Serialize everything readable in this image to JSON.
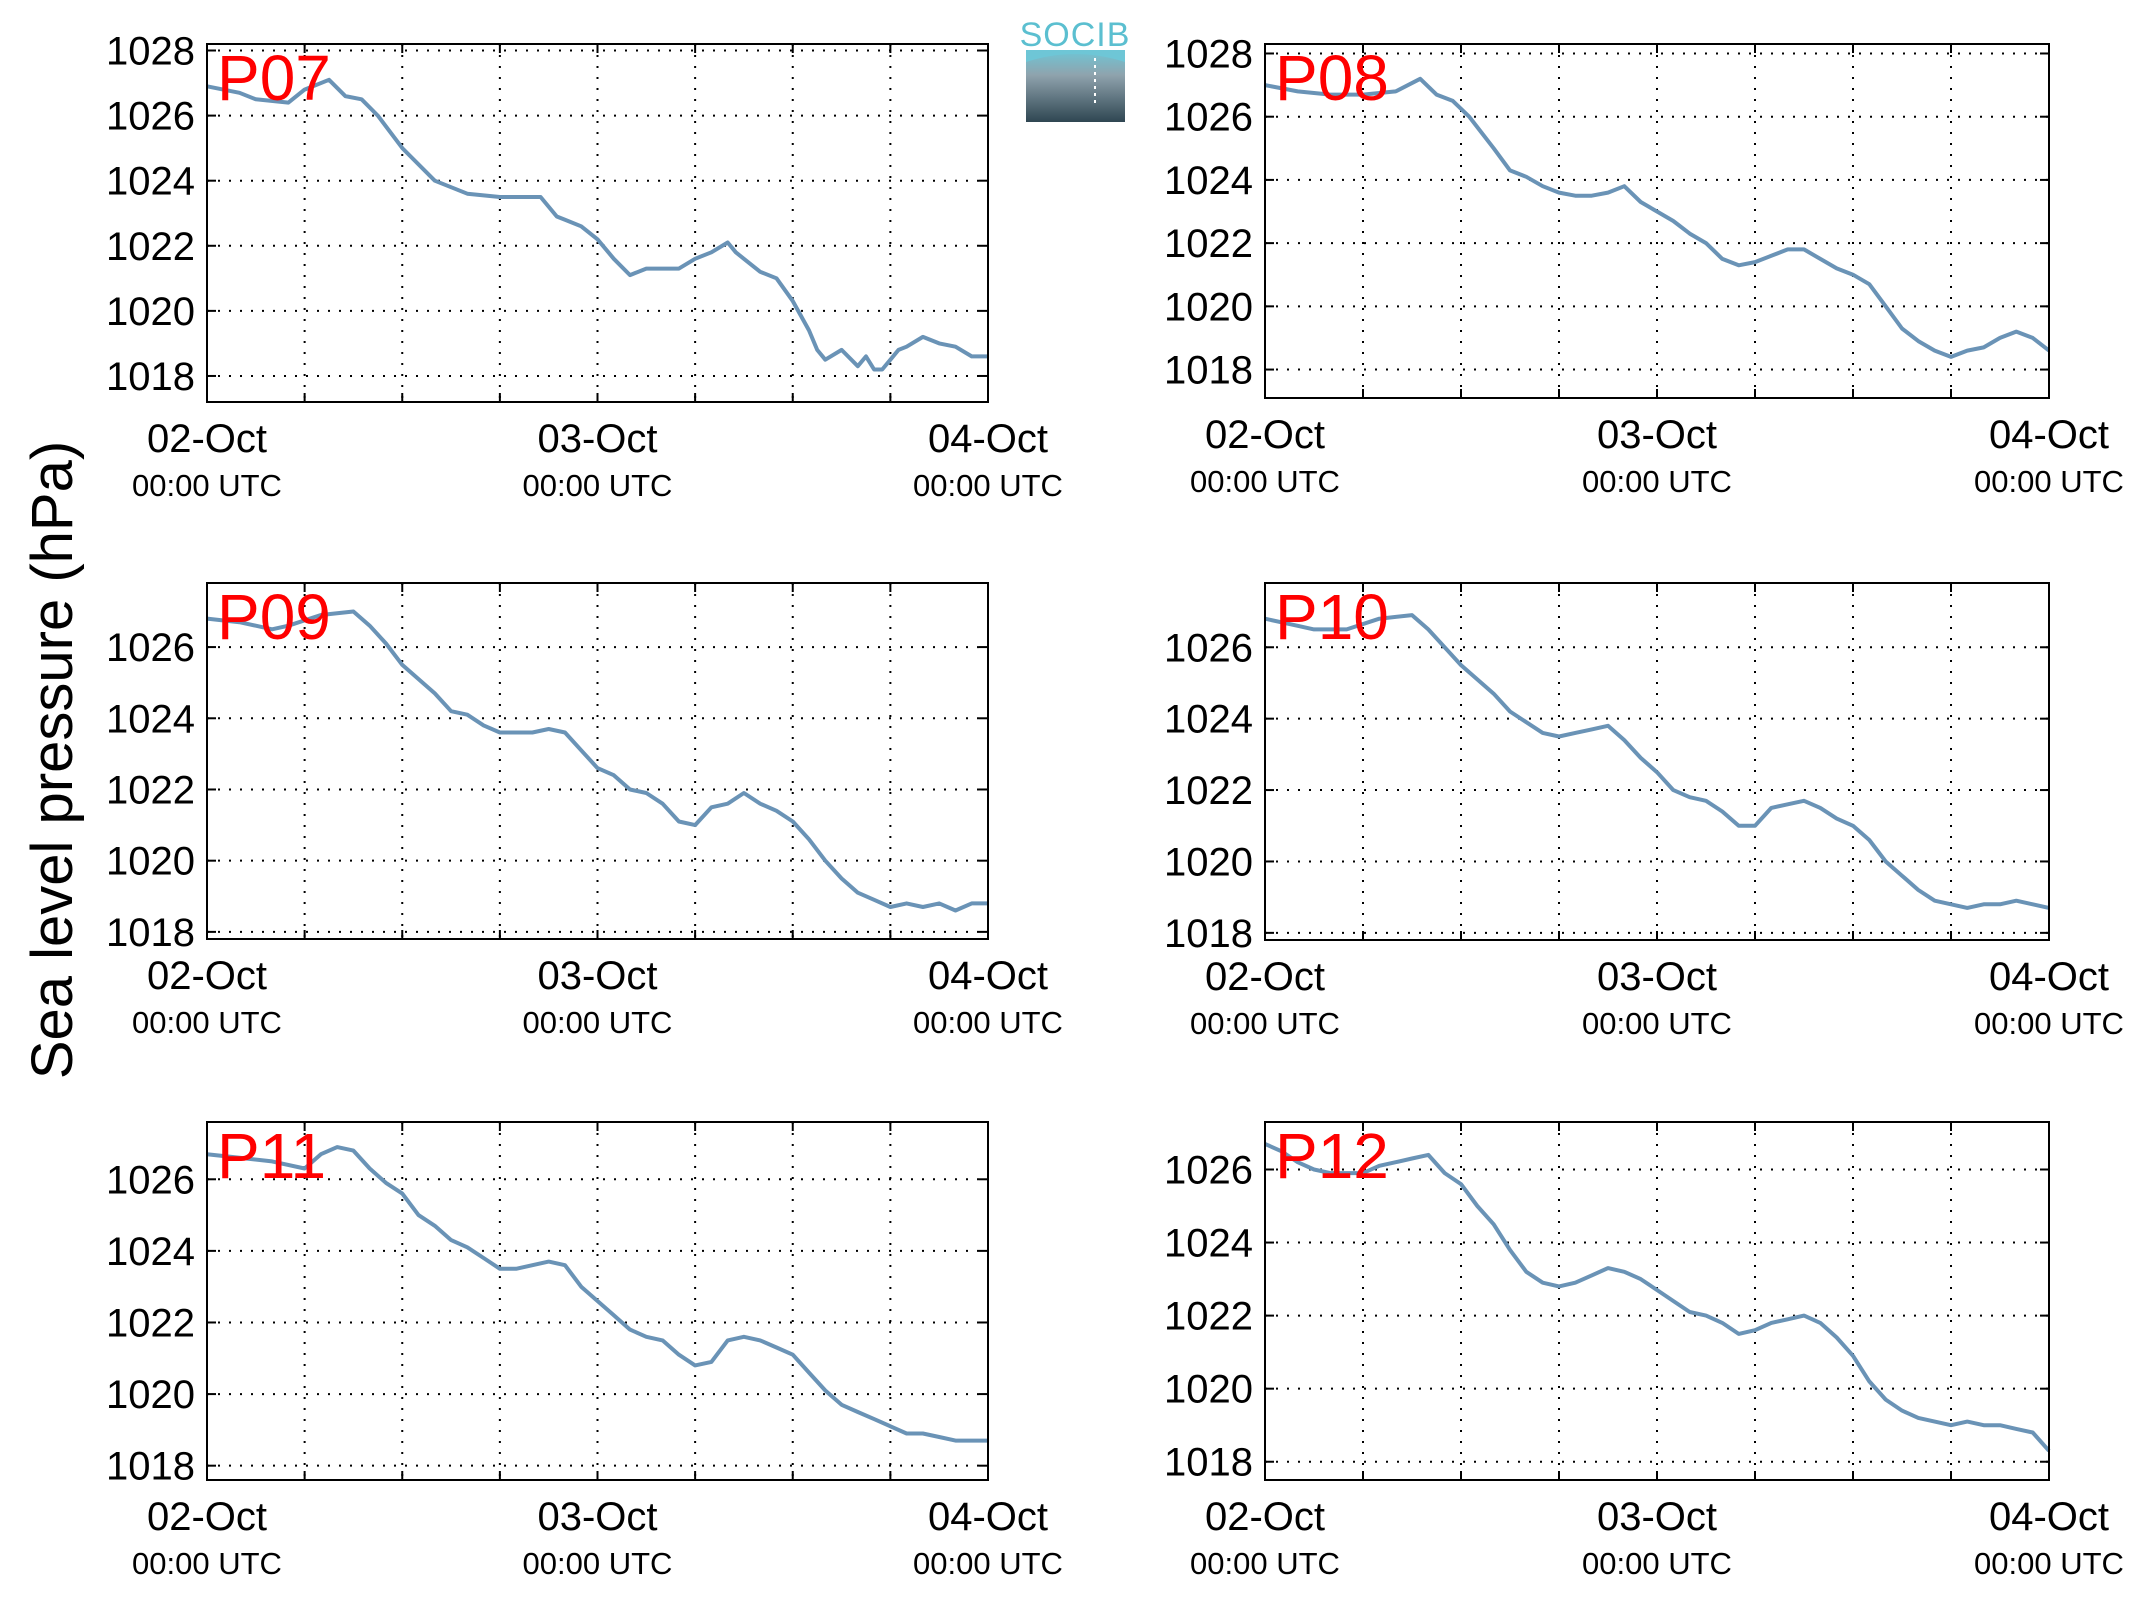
{
  "ylabel": "Sea level pressure (hPa)",
  "logo": {
    "text": "SOCIB"
  },
  "x_axis": {
    "ticks": [
      {
        "date": "02-Oct",
        "time": "00:00 UTC"
      },
      {
        "date": "03-Oct",
        "time": "00:00 UTC"
      },
      {
        "date": "04-Oct",
        "time": "00:00 UTC"
      }
    ]
  },
  "colors": {
    "line": "#6a93b6",
    "title": "#ff0000"
  },
  "chart_data": [
    {
      "type": "line",
      "title": "P07",
      "xlim": [
        0,
        48
      ],
      "ylim": [
        1017.2,
        1028.2
      ],
      "yticks": [
        1018,
        1020,
        1022,
        1024,
        1026,
        1028
      ],
      "x": [
        0,
        2,
        3,
        5,
        6,
        7.5,
        8.5,
        9.5,
        10.5,
        12,
        14,
        16,
        18,
        19.5,
        20.5,
        21.5,
        22,
        23,
        24,
        25,
        26,
        27,
        28,
        29,
        30,
        31,
        32,
        32.5,
        33,
        34,
        35,
        36,
        37,
        37.5,
        38,
        39,
        40,
        40.5,
        41,
        41.5,
        42,
        42.5,
        43,
        44,
        45,
        46,
        47,
        48
      ],
      "y": [
        1026.9,
        1026.7,
        1026.5,
        1026.4,
        1026.8,
        1027.1,
        1026.6,
        1026.5,
        1026.0,
        1025.0,
        1024.0,
        1023.6,
        1023.5,
        1023.5,
        1023.5,
        1022.9,
        1022.8,
        1022.6,
        1022.2,
        1021.6,
        1021.1,
        1021.3,
        1021.3,
        1021.3,
        1021.6,
        1021.8,
        1022.1,
        1021.8,
        1021.6,
        1021.2,
        1021.0,
        1020.3,
        1019.4,
        1018.8,
        1018.5,
        1018.8,
        1018.3,
        1018.6,
        1018.2,
        1018.2,
        1018.5,
        1018.8,
        1018.9,
        1019.2,
        1019.0,
        1018.9,
        1018.6,
        1018.6
      ]
    },
    {
      "type": "line",
      "title": "P08",
      "xlim": [
        0,
        48
      ],
      "ylim": [
        1017.1,
        1028.3
      ],
      "yticks": [
        1018,
        1020,
        1022,
        1024,
        1026,
        1028
      ],
      "x": [
        0,
        2,
        4,
        6,
        8,
        9.5,
        10.5,
        11.5,
        12.5,
        14,
        15,
        16,
        17,
        18,
        19,
        20,
        21,
        22,
        23,
        24,
        25,
        26,
        27,
        28,
        29,
        30,
        31,
        32,
        33,
        34,
        35,
        36,
        37,
        38,
        39,
        40,
        41,
        42,
        43,
        44,
        45,
        46,
        47,
        48
      ],
      "y": [
        1027.0,
        1026.8,
        1026.7,
        1026.7,
        1026.8,
        1027.2,
        1026.7,
        1026.5,
        1026.0,
        1025.0,
        1024.3,
        1024.1,
        1023.8,
        1023.6,
        1023.5,
        1023.5,
        1023.6,
        1023.8,
        1023.3,
        1023.0,
        1022.7,
        1022.3,
        1022.0,
        1021.5,
        1021.3,
        1021.4,
        1021.6,
        1021.8,
        1021.8,
        1021.5,
        1021.2,
        1021.0,
        1020.7,
        1020.0,
        1019.3,
        1018.9,
        1018.6,
        1018.4,
        1018.6,
        1018.7,
        1019.0,
        1019.2,
        1019.0,
        1018.6
      ]
    },
    {
      "type": "line",
      "title": "P09",
      "xlim": [
        0,
        48
      ],
      "ylim": [
        1017.8,
        1027.8
      ],
      "yticks": [
        1018,
        1020,
        1022,
        1024,
        1026
      ],
      "x": [
        0,
        2,
        3,
        4,
        5,
        7,
        9,
        10,
        11,
        12,
        14,
        15,
        16,
        17,
        18,
        19,
        20,
        21,
        22,
        23,
        24,
        25,
        26,
        27,
        28,
        29,
        30,
        31,
        32,
        33,
        34,
        35,
        36,
        37,
        38,
        39,
        40,
        41,
        42,
        43,
        44,
        45,
        46,
        47,
        48
      ],
      "y": [
        1026.8,
        1026.7,
        1026.6,
        1026.5,
        1026.6,
        1026.9,
        1027.0,
        1026.6,
        1026.1,
        1025.5,
        1024.7,
        1024.2,
        1024.1,
        1023.8,
        1023.6,
        1023.6,
        1023.6,
        1023.7,
        1023.6,
        1023.1,
        1022.6,
        1022.4,
        1022.0,
        1021.9,
        1021.6,
        1021.1,
        1021.0,
        1021.5,
        1021.6,
        1021.9,
        1021.6,
        1021.4,
        1021.1,
        1020.6,
        1020.0,
        1019.5,
        1019.1,
        1018.9,
        1018.7,
        1018.8,
        1018.7,
        1018.8,
        1018.6,
        1018.8,
        1018.8
      ]
    },
    {
      "type": "line",
      "title": "P10",
      "xlim": [
        0,
        48
      ],
      "ylim": [
        1017.8,
        1027.8
      ],
      "yticks": [
        1018,
        1020,
        1022,
        1024,
        1026
      ],
      "x": [
        0,
        2,
        3,
        4,
        5,
        7,
        9,
        10,
        11,
        12,
        14,
        15,
        16,
        17,
        18,
        19,
        20,
        21,
        22,
        23,
        24,
        25,
        26,
        27,
        28,
        29,
        30,
        31,
        32,
        33,
        34,
        35,
        36,
        37,
        38,
        39,
        40,
        41,
        42,
        43,
        44,
        45,
        46,
        47,
        48
      ],
      "y": [
        1026.8,
        1026.6,
        1026.5,
        1026.5,
        1026.5,
        1026.8,
        1026.9,
        1026.5,
        1026.0,
        1025.5,
        1024.7,
        1024.2,
        1023.9,
        1023.6,
        1023.5,
        1023.6,
        1023.7,
        1023.8,
        1023.4,
        1022.9,
        1022.5,
        1022.0,
        1021.8,
        1021.7,
        1021.4,
        1021.0,
        1021.0,
        1021.5,
        1021.6,
        1021.7,
        1021.5,
        1021.2,
        1021.0,
        1020.6,
        1020.0,
        1019.6,
        1019.2,
        1018.9,
        1018.8,
        1018.7,
        1018.8,
        1018.8,
        1018.9,
        1018.8,
        1018.7
      ]
    },
    {
      "type": "line",
      "title": "P11",
      "xlim": [
        0,
        48
      ],
      "ylim": [
        1017.6,
        1027.6
      ],
      "yticks": [
        1018,
        1020,
        1022,
        1024,
        1026
      ],
      "x": [
        0,
        2,
        4,
        6,
        7,
        8,
        9,
        10,
        11,
        12,
        13,
        14,
        15,
        16,
        17,
        18,
        19,
        20,
        21,
        22,
        23,
        24,
        25,
        26,
        27,
        28,
        29,
        30,
        31,
        32,
        33,
        34,
        35,
        36,
        37,
        38,
        39,
        40,
        41,
        42,
        43,
        44,
        45,
        46,
        47,
        48
      ],
      "y": [
        1026.7,
        1026.6,
        1026.5,
        1026.3,
        1026.7,
        1026.9,
        1026.8,
        1026.3,
        1025.9,
        1025.6,
        1025.0,
        1024.7,
        1024.3,
        1024.1,
        1023.8,
        1023.5,
        1023.5,
        1023.6,
        1023.7,
        1023.6,
        1023.0,
        1022.6,
        1022.2,
        1021.8,
        1021.6,
        1021.5,
        1021.1,
        1020.8,
        1020.9,
        1021.5,
        1021.6,
        1021.5,
        1021.3,
        1021.1,
        1020.6,
        1020.1,
        1019.7,
        1019.5,
        1019.3,
        1019.1,
        1018.9,
        1018.9,
        1018.8,
        1018.7,
        1018.7,
        1018.7
      ]
    },
    {
      "type": "line",
      "title": "P12",
      "xlim": [
        0,
        48
      ],
      "ylim": [
        1017.5,
        1027.3
      ],
      "yticks": [
        1018,
        1020,
        1022,
        1024,
        1026
      ],
      "x": [
        0,
        1,
        2,
        3,
        4,
        5,
        6,
        7,
        8,
        9,
        10,
        11,
        12,
        13,
        14,
        15,
        16,
        17,
        18,
        19,
        20,
        21,
        22,
        23,
        24,
        25,
        26,
        27,
        28,
        29,
        30,
        31,
        32,
        33,
        34,
        35,
        36,
        37,
        38,
        39,
        40,
        41,
        42,
        43,
        44,
        45,
        46,
        47,
        48
      ],
      "y": [
        1026.7,
        1026.5,
        1026.2,
        1026.0,
        1025.9,
        1025.9,
        1025.9,
        1026.1,
        1026.2,
        1026.3,
        1026.4,
        1025.9,
        1025.6,
        1025.0,
        1024.5,
        1023.8,
        1023.2,
        1022.9,
        1022.8,
        1022.9,
        1023.1,
        1023.3,
        1023.2,
        1023.0,
        1022.7,
        1022.4,
        1022.1,
        1022.0,
        1021.8,
        1021.5,
        1021.6,
        1021.8,
        1021.9,
        1022.0,
        1021.8,
        1021.4,
        1020.9,
        1020.2,
        1019.7,
        1019.4,
        1019.2,
        1019.1,
        1019.0,
        1019.1,
        1019.0,
        1019.0,
        1018.9,
        1018.8,
        1018.3
      ]
    }
  ]
}
